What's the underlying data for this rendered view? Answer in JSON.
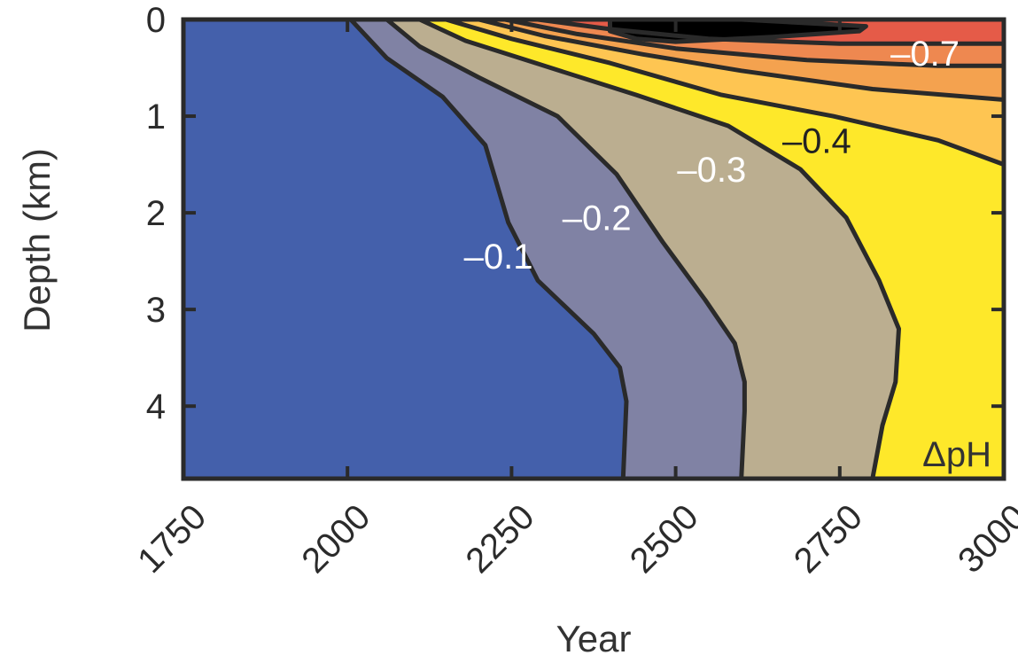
{
  "chart_data": {
    "type": "contour",
    "xlabel": "Year",
    "ylabel": "Depth (km)",
    "variable_label": "ΔpH",
    "xlim": [
      1750,
      3000
    ],
    "ylim": [
      0,
      4.75
    ],
    "y_inverted": true,
    "xticks": [
      1750,
      2000,
      2250,
      2500,
      2750,
      3000
    ],
    "xtick_labels": [
      "1750",
      "2000",
      "2250",
      "2500",
      "2750",
      "3000"
    ],
    "yticks": [
      0,
      1,
      2,
      3,
      4
    ],
    "ytick_labels": [
      "0",
      "1",
      "2",
      "3",
      "4"
    ],
    "band_colors": [
      "#4460ab",
      "#8082a4",
      "#bbae90",
      "#fee82a",
      "#fec552",
      "#f4a24f",
      "#ee8850",
      "#e55b48"
    ],
    "contours": [
      {
        "level": -0.1,
        "label": "–0.1",
        "label_pos": [
          2230,
          2.45
        ],
        "label_color": "#ffffff",
        "points": [
          [
            2005,
            0
          ],
          [
            2060,
            0.4
          ],
          [
            2145,
            0.8
          ],
          [
            2210,
            1.3
          ],
          [
            2245,
            2.1
          ],
          [
            2290,
            2.7
          ],
          [
            2375,
            3.25
          ],
          [
            2415,
            3.6
          ],
          [
            2425,
            3.95
          ],
          [
            2420,
            4.75
          ]
        ]
      },
      {
        "level": -0.2,
        "label": "–0.2",
        "label_pos": [
          2380,
          2.05
        ],
        "label_color": "#ffffff",
        "points": [
          [
            2060,
            0
          ],
          [
            2110,
            0.28
          ],
          [
            2200,
            0.6
          ],
          [
            2320,
            1.0
          ],
          [
            2410,
            1.6
          ],
          [
            2480,
            2.3
          ],
          [
            2545,
            2.9
          ],
          [
            2590,
            3.35
          ],
          [
            2605,
            3.75
          ],
          [
            2605,
            4.05
          ],
          [
            2600,
            4.75
          ]
        ]
      },
      {
        "level": -0.3,
        "label": "–0.3",
        "label_pos": [
          2555,
          1.55
        ],
        "label_color": "#ffffff",
        "points": [
          [
            2110,
            0
          ],
          [
            2180,
            0.22
          ],
          [
            2300,
            0.48
          ],
          [
            2440,
            0.78
          ],
          [
            2580,
            1.1
          ],
          [
            2690,
            1.55
          ],
          [
            2760,
            2.05
          ],
          [
            2810,
            2.7
          ],
          [
            2840,
            3.2
          ],
          [
            2835,
            3.75
          ],
          [
            2815,
            4.2
          ],
          [
            2800,
            4.75
          ]
        ]
      },
      {
        "level": -0.4,
        "label": "–0.4",
        "label_pos": [
          2715,
          1.25
        ],
        "label_color": "#222222",
        "points": [
          [
            2150,
            0
          ],
          [
            2250,
            0.2
          ],
          [
            2400,
            0.45
          ],
          [
            2570,
            0.78
          ],
          [
            2740,
            1.0
          ],
          [
            2900,
            1.25
          ],
          [
            3000,
            1.5
          ]
        ]
      },
      {
        "level": -0.5,
        "label": "",
        "label_pos": null,
        "label_color": "#222222",
        "points": [
          [
            2200,
            0
          ],
          [
            2300,
            0.17
          ],
          [
            2450,
            0.36
          ],
          [
            2600,
            0.53
          ],
          [
            2800,
            0.72
          ],
          [
            3000,
            0.83
          ]
        ]
      },
      {
        "level": -0.6,
        "label": "",
        "label_pos": null,
        "label_color": "#222222",
        "points": [
          [
            2240,
            0
          ],
          [
            2350,
            0.15
          ],
          [
            2500,
            0.3
          ],
          [
            2700,
            0.42
          ],
          [
            2900,
            0.48
          ],
          [
            3000,
            0.48
          ]
        ]
      },
      {
        "level": -0.7,
        "label": "–0.7",
        "label_pos": [
          2880,
          0.35
        ],
        "label_color": "#ffffff",
        "points": [
          [
            2290,
            0
          ],
          [
            2400,
            0.1
          ],
          [
            2550,
            0.2
          ],
          [
            2750,
            0.25
          ],
          [
            3000,
            0.25
          ]
        ]
      },
      {
        "level": -0.8,
        "label": "",
        "label_pos": null,
        "label_color": "#222222",
        "closed": true,
        "points": [
          [
            2400,
            0
          ],
          [
            2600,
            0
          ],
          [
            2790,
            0.07
          ],
          [
            2780,
            0.12
          ],
          [
            2650,
            0.18
          ],
          [
            2500,
            0.23
          ],
          [
            2440,
            0.2
          ],
          [
            2400,
            0.12
          ]
        ]
      }
    ]
  }
}
